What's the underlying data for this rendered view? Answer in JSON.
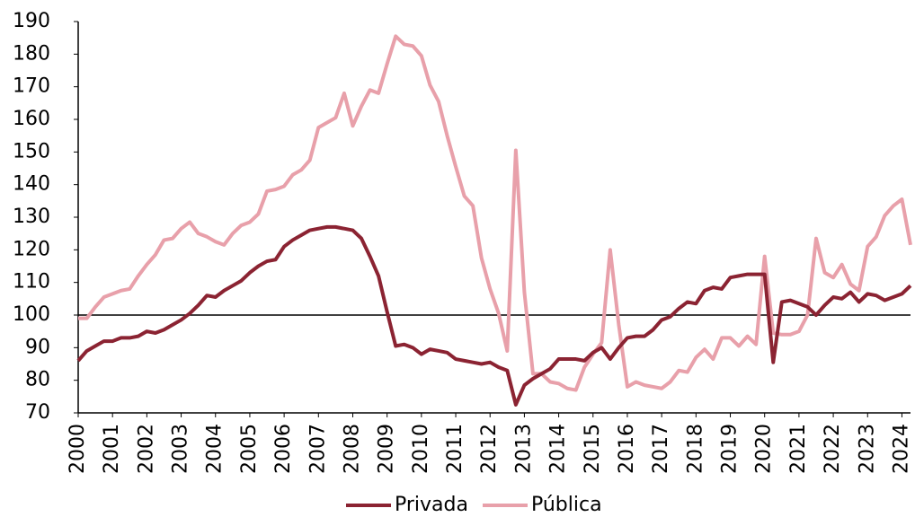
{
  "chart_data": {
    "type": "line",
    "categories": [
      "2000",
      null,
      null,
      null,
      "2001",
      null,
      null,
      null,
      "2002",
      null,
      null,
      null,
      "2003",
      null,
      null,
      null,
      "2004",
      null,
      null,
      null,
      "2005",
      null,
      null,
      null,
      "2006",
      null,
      null,
      null,
      "2007",
      null,
      null,
      null,
      "2008",
      null,
      null,
      null,
      "2009",
      null,
      null,
      null,
      "2010",
      null,
      null,
      null,
      "2011",
      null,
      null,
      null,
      "2012",
      null,
      null,
      null,
      "2013",
      null,
      null,
      null,
      "2014",
      null,
      null,
      null,
      "2015",
      null,
      null,
      null,
      "2016",
      null,
      null,
      null,
      "2017",
      null,
      null,
      null,
      "2018",
      null,
      null,
      null,
      "2019",
      null,
      null,
      null,
      "2020",
      null,
      null,
      null,
      "2021",
      null,
      null,
      null,
      "2022",
      null,
      null,
      null,
      "2023",
      null,
      null,
      null,
      "2024",
      null
    ],
    "series": [
      {
        "name": "Privada",
        "color": "#8b2332",
        "values": [
          86,
          89,
          90.5,
          92,
          92,
          93,
          93,
          93.5,
          95,
          94.5,
          95.5,
          97,
          98.5,
          100.5,
          103,
          106,
          105.5,
          107.5,
          109,
          110.5,
          113,
          115,
          116.5,
          117,
          121,
          123,
          124.5,
          126,
          126.5,
          127,
          127,
          126.5,
          126,
          123.5,
          118,
          112,
          101,
          90.5,
          91,
          90,
          88,
          89.5,
          89,
          88.5,
          86.5,
          86,
          85.5,
          85,
          85.5,
          84,
          83,
          72.5,
          78.5,
          80.5,
          82,
          83.5,
          86.5,
          86.5,
          86.5,
          86,
          88.5,
          90,
          86.5,
          90,
          93,
          93.5,
          93.5,
          95.5,
          98.5,
          99.5,
          102,
          104,
          103.5,
          107.5,
          108.5,
          108,
          111.5,
          112,
          112.5,
          112.5,
          112.5,
          85.5,
          104,
          104.5,
          103.5,
          102.5,
          100,
          103,
          105.5,
          105,
          107,
          104,
          106.5,
          106,
          104.5,
          105.5,
          106.5,
          109
        ]
      },
      {
        "name": "Pública",
        "color": "#e8a0aa",
        "values": [
          99,
          99,
          102.5,
          105.5,
          106.5,
          107.5,
          108,
          112,
          115.5,
          118.5,
          123,
          123.5,
          126.5,
          128.5,
          125,
          124,
          122.5,
          121.5,
          125,
          127.5,
          128.5,
          131,
          138,
          138.5,
          139.5,
          143,
          144.5,
          147.5,
          157.5,
          159,
          160.5,
          168,
          158,
          164,
          169,
          168,
          177,
          185.5,
          183,
          182.5,
          179.5,
          170.5,
          165.5,
          155,
          145.5,
          136.5,
          133.5,
          117.5,
          108,
          100.5,
          89,
          150.5,
          107,
          82,
          82,
          79.5,
          79,
          77.5,
          77,
          84,
          88,
          91.5,
          120,
          97,
          78,
          79.5,
          78.5,
          78,
          77.5,
          79.5,
          83,
          82.5,
          87,
          89.5,
          86.5,
          93,
          93,
          90.5,
          93.5,
          91,
          118,
          94.5,
          94,
          94,
          95,
          100,
          123.5,
          113,
          111.5,
          115.5,
          109.5,
          107.5,
          121,
          124,
          130.5,
          133.5,
          135.5,
          121.5
        ]
      }
    ],
    "reference_line": 100,
    "ylim": [
      70,
      190
    ],
    "yticks": [
      70,
      80,
      90,
      100,
      110,
      120,
      130,
      140,
      150,
      160,
      170,
      180,
      190
    ],
    "grid": false,
    "legend": "bottom"
  }
}
